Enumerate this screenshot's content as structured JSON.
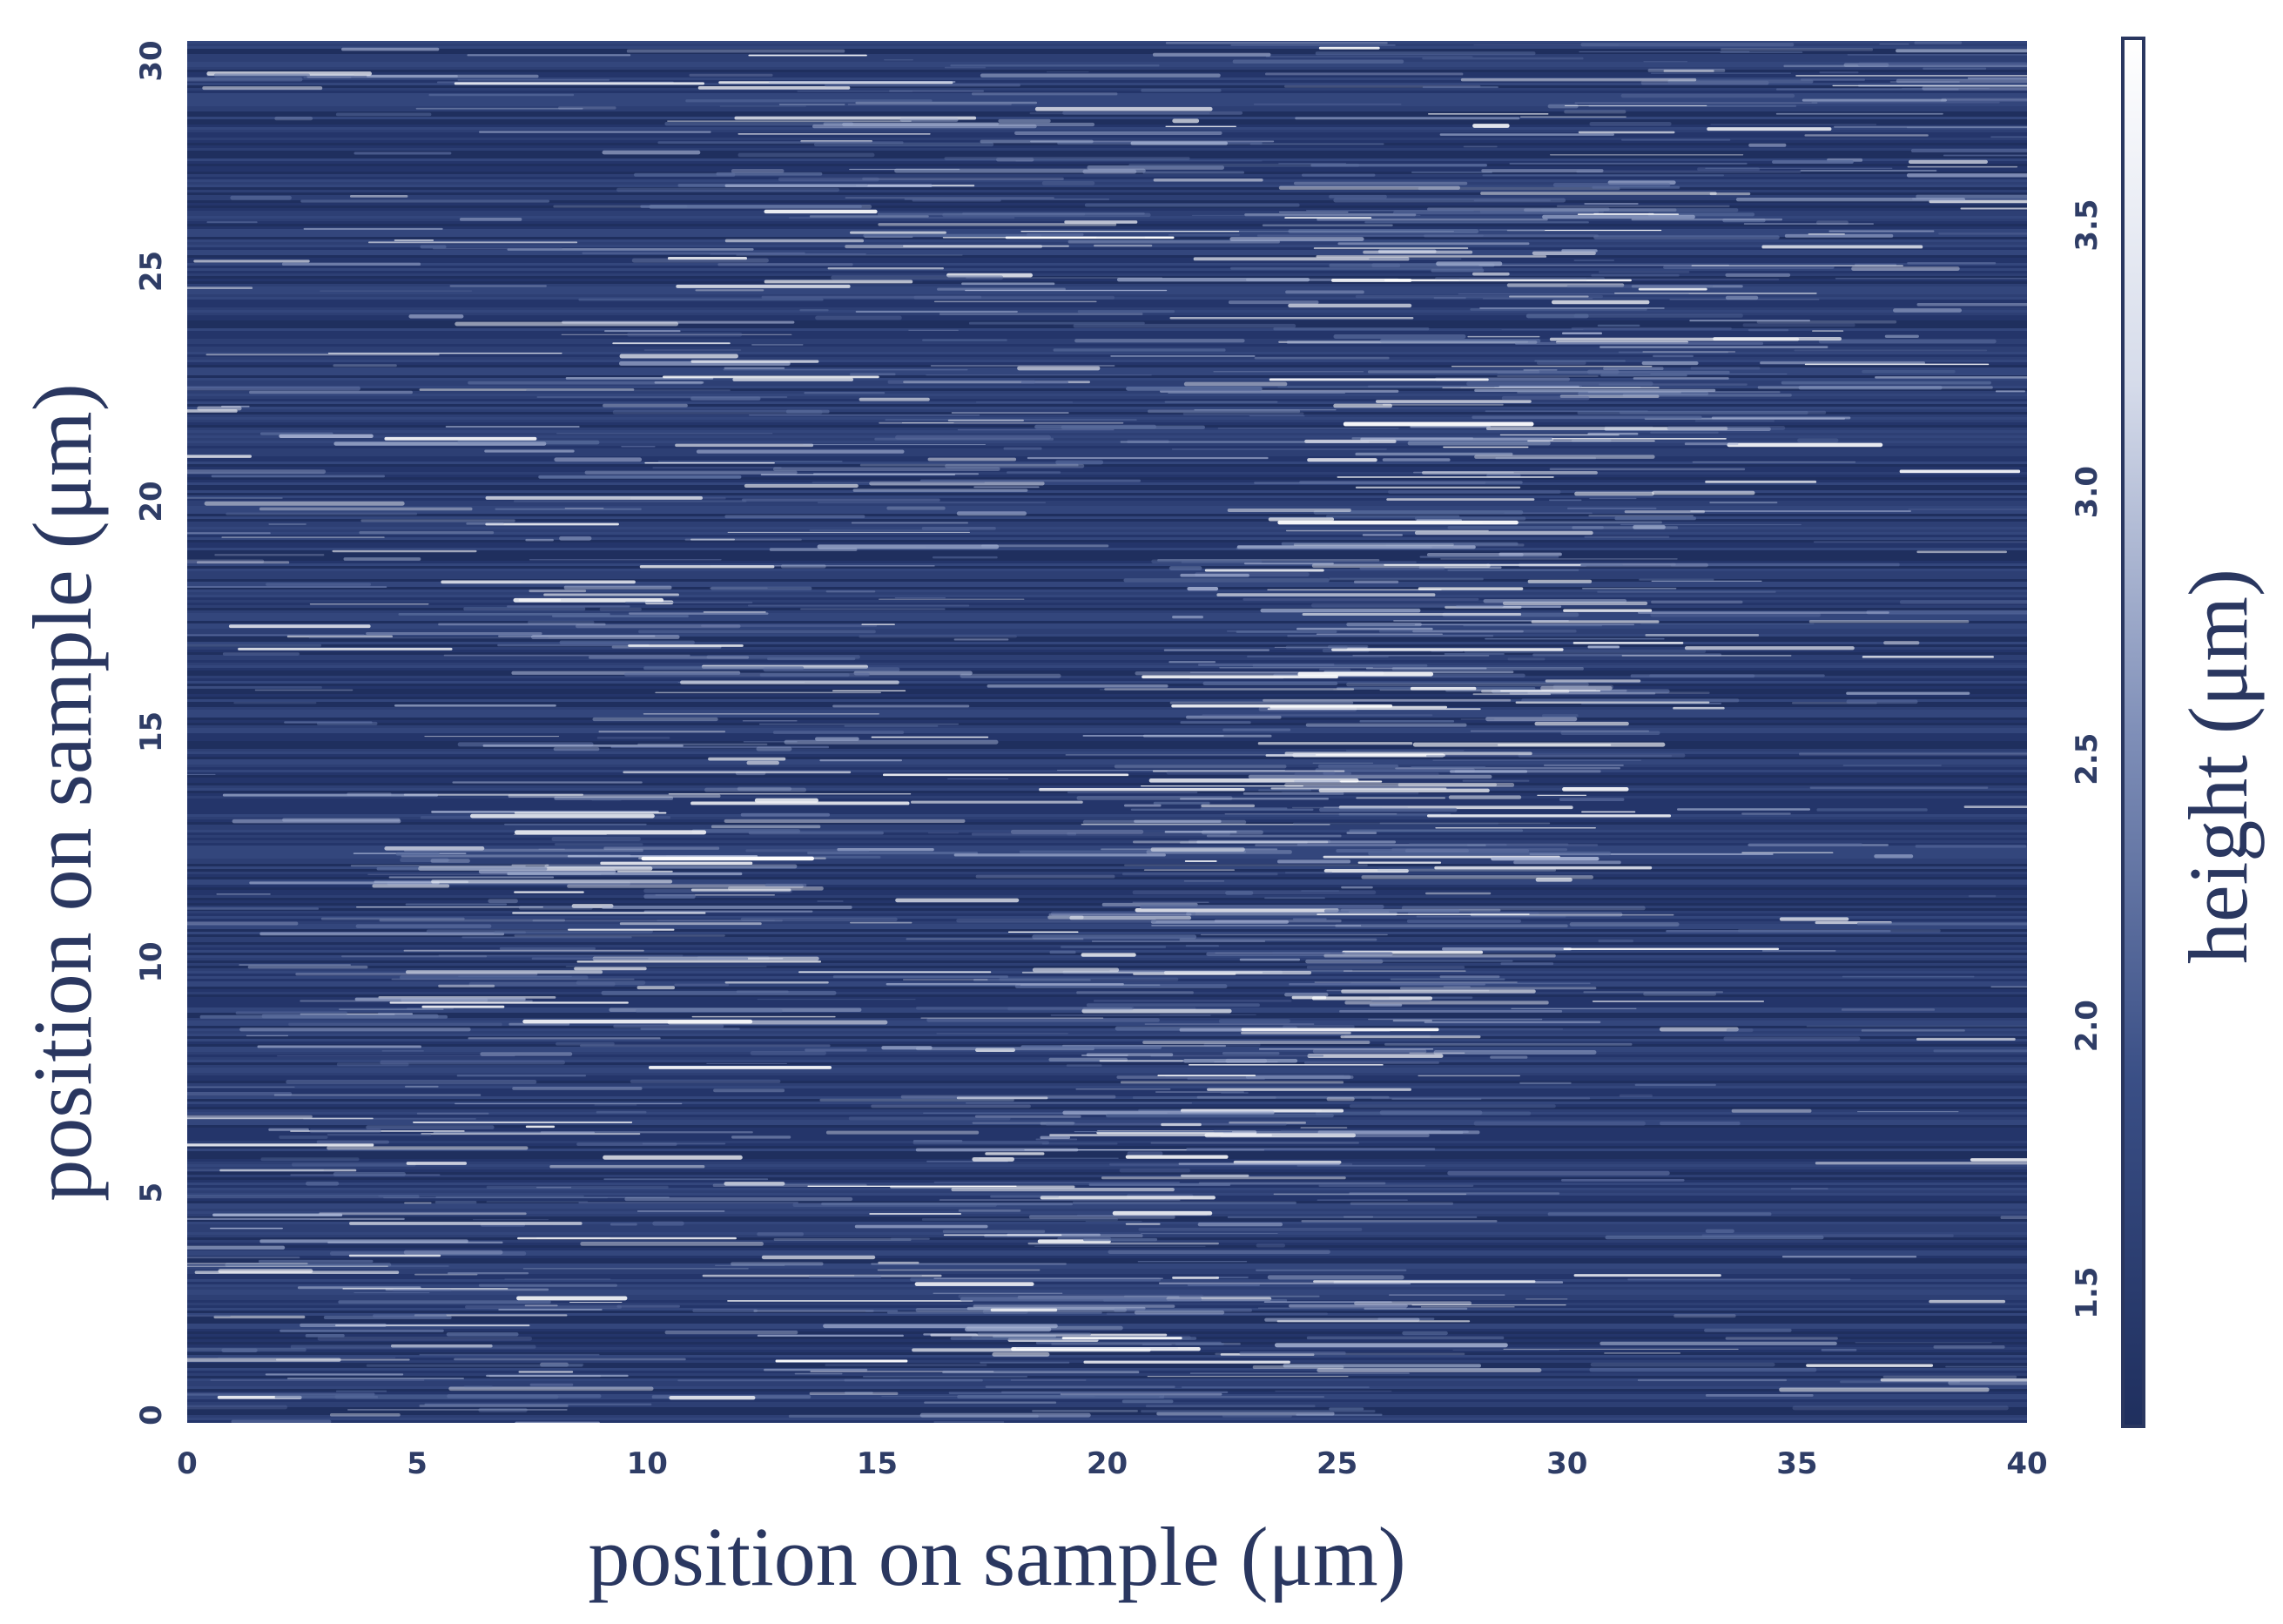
{
  "chart_data": {
    "type": "heatmap",
    "title": "",
    "xlabel": "position on sample (μm)",
    "ylabel": "position on sample (μm)",
    "colorbar_label": "height (μm)",
    "xlim": [
      0,
      40
    ],
    "ylim": [
      0,
      30
    ],
    "x_ticks": [
      "0",
      "5",
      "10",
      "15",
      "20",
      "25",
      "30",
      "35",
      "40"
    ],
    "y_ticks": [
      "0",
      "5",
      "10",
      "15",
      "20",
      "25",
      "30"
    ],
    "colorbar_range": [
      1.25,
      3.85
    ],
    "colorbar_ticks": [
      "1.5",
      "2.0",
      "2.5",
      "3.0",
      "3.5"
    ],
    "colormap": [
      "#1f2f5e",
      "#3a4f86",
      "#7f8fb8",
      "#d5dbea",
      "#ffffff"
    ],
    "description_of_field": "streaky AFM-like height map with horizontal striations; mostly dark blue with brighter diagonal bands",
    "grid": false
  }
}
